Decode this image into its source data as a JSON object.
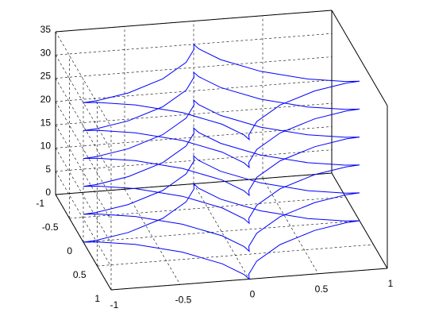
{
  "chart_data": {
    "type": "line3d",
    "x": [
      1,
      0.901,
      0.65,
      0.354,
      0.125,
      0.017,
      0,
      -0.017,
      -0.125,
      -0.354,
      -0.65,
      -0.901,
      -1,
      -0.901,
      -0.65,
      -0.354,
      -0.125,
      -0.017,
      0,
      0.017,
      0.125,
      0.354,
      0.65,
      0.901,
      1
    ],
    "y": [
      0,
      0.017,
      0.125,
      0.354,
      0.65,
      0.901,
      1,
      0.901,
      0.65,
      0.354,
      0.125,
      0.017,
      0,
      -0.017,
      -0.125,
      -0.354,
      -0.65,
      -0.901,
      -1,
      -0.901,
      -0.65,
      -0.354,
      -0.125,
      -0.017,
      0
    ],
    "series": [
      {
        "color": "#0000ff",
        "z": 0
      },
      {
        "color": "#0000ff",
        "z": 6
      },
      {
        "color": "#0000ff",
        "z": 12
      },
      {
        "color": "#0000ff",
        "z": 18
      },
      {
        "color": "#0000ff",
        "z": 24
      },
      {
        "color": "#0000ff",
        "z": 30
      }
    ],
    "xlim": [
      -1,
      1
    ],
    "ylim": [
      -1,
      1
    ],
    "zlim": [
      0,
      35
    ],
    "xticks": [
      -1,
      -0.5,
      0,
      0.5,
      1
    ],
    "yticks": [
      -1,
      -0.5,
      0,
      0.5,
      1
    ],
    "zticks": [
      0,
      5,
      10,
      15,
      20,
      25,
      30,
      35
    ],
    "grid": true
  }
}
